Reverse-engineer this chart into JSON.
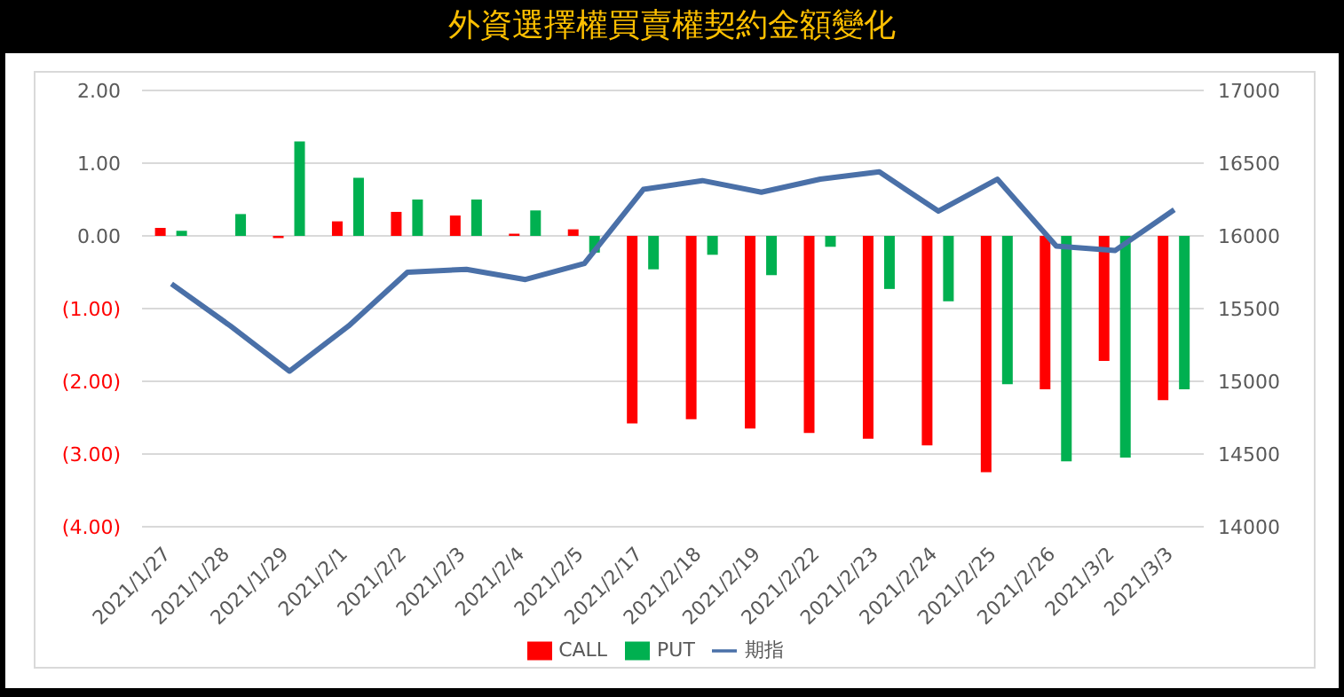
{
  "chart_data": {
    "type": "bar",
    "title": "外資選擇權買賣權契約金額變化",
    "categories": [
      "2021/1/27",
      "2021/1/28",
      "2021/1/29",
      "2021/2/1",
      "2021/2/2",
      "2021/2/3",
      "2021/2/4",
      "2021/2/5",
      "2021/2/17",
      "2021/2/18",
      "2021/2/19",
      "2021/2/22",
      "2021/2/23",
      "2021/2/24",
      "2021/2/25",
      "2021/2/26",
      "2021/3/2",
      "2021/3/3"
    ],
    "series": [
      {
        "name": "CALL",
        "color": "#ff0000",
        "values": [
          0.11,
          0,
          -0.03,
          0.2,
          0.33,
          0.28,
          0.03,
          0.09,
          -2.58,
          -2.52,
          -2.65,
          -2.71,
          -2.79,
          -2.88,
          -3.25,
          -2.11,
          -1.72,
          -2.26
        ]
      },
      {
        "name": "PUT",
        "color": "#00b050",
        "values": [
          0.07,
          0.3,
          1.3,
          0.8,
          0.5,
          0.5,
          0.35,
          -0.23,
          -0.46,
          -0.26,
          -0.54,
          -0.15,
          -0.73,
          -0.9,
          -2.04,
          -3.1,
          -3.05,
          -2.11
        ]
      },
      {
        "name": "期指",
        "type": "line",
        "axis": "y2",
        "color": "#4a70a8",
        "values": [
          15670,
          15380,
          15070,
          15380,
          15750,
          15770,
          15700,
          15810,
          16320,
          16380,
          16300,
          16390,
          16440,
          16170,
          16390,
          15930,
          15900,
          16180
        ]
      }
    ],
    "ylim": [
      -4,
      2
    ],
    "yticks": [
      {
        "value": -4,
        "label": "(4.00)"
      },
      {
        "value": -3,
        "label": "(3.00)"
      },
      {
        "value": -2,
        "label": "(2.00)"
      },
      {
        "value": -1,
        "label": "(1.00)"
      },
      {
        "value": 0,
        "label": "0.00"
      },
      {
        "value": 1,
        "label": "1.00"
      },
      {
        "value": 2,
        "label": "2.00"
      }
    ],
    "y2lim": [
      14000,
      17000
    ],
    "y2ticks": [
      14000,
      14500,
      15000,
      15500,
      16000,
      16500,
      17000
    ],
    "grid": "y",
    "legend": "bottom",
    "marker": "none",
    "line_style": "solid"
  }
}
